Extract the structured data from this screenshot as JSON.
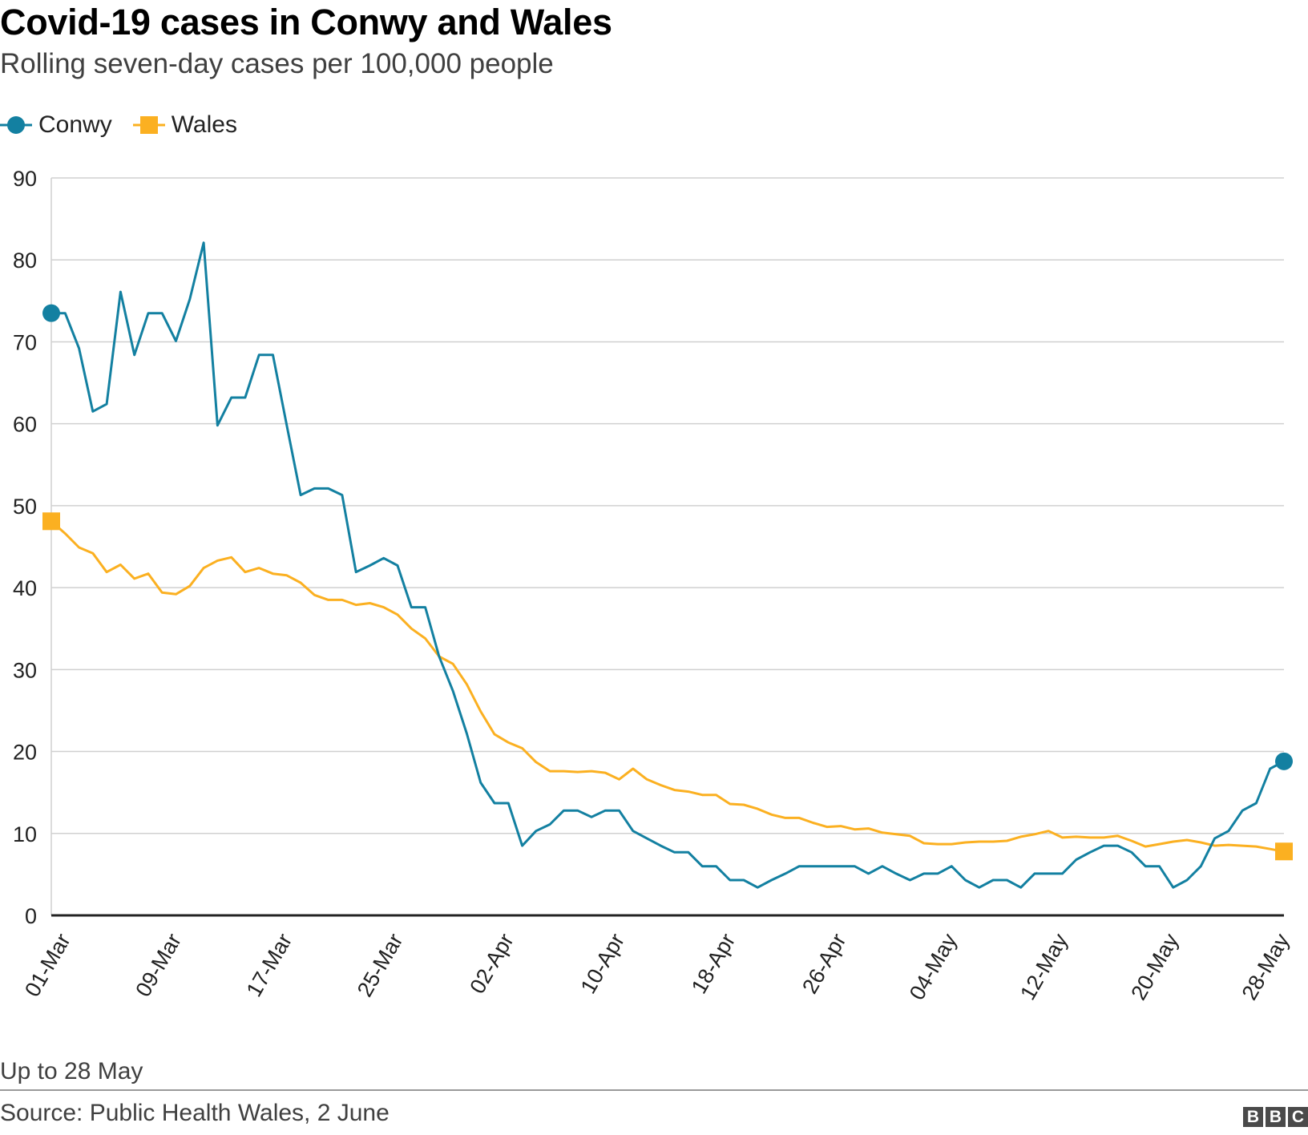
{
  "chart_data": {
    "type": "line",
    "title": "Covid-19 cases in Conwy and Wales",
    "subtitle": "Rolling seven-day cases per 100,000 people",
    "xlabel": "",
    "ylabel": "",
    "ylim": [
      0,
      90
    ],
    "yticks": [
      0,
      10,
      20,
      30,
      40,
      50,
      60,
      70,
      80,
      90
    ],
    "x_tick_labels": [
      "01-Mar",
      "09-Mar",
      "17-Mar",
      "25-Mar",
      "02-Apr",
      "10-Apr",
      "18-Apr",
      "26-Apr",
      "04-May",
      "12-May",
      "20-May",
      "28-May"
    ],
    "x_tick_interval_days": 8,
    "x_start_label": "01-Mar",
    "grid": true,
    "legend_position": "top-left",
    "series": [
      {
        "name": "Conwy",
        "color": "#1380a1",
        "marker": "circle",
        "values": [
          73.5,
          73.5,
          69.2,
          61.5,
          62.4,
          76.1,
          68.4,
          73.5,
          73.5,
          70.1,
          75.2,
          82.1,
          59.8,
          63.2,
          63.2,
          68.4,
          68.4,
          59.8,
          51.3,
          52.1,
          52.1,
          51.3,
          41.9,
          42.7,
          43.6,
          42.7,
          37.6,
          37.6,
          31.6,
          27.4,
          22.2,
          16.2,
          13.7,
          13.7,
          8.5,
          10.3,
          11.1,
          12.8,
          12.8,
          12.0,
          12.8,
          12.8,
          10.3,
          9.4,
          8.5,
          7.7,
          7.7,
          6.0,
          6.0,
          4.3,
          4.3,
          3.4,
          4.3,
          5.1,
          6.0,
          6.0,
          6.0,
          6.0,
          6.0,
          5.1,
          6.0,
          5.1,
          4.3,
          5.1,
          5.1,
          6.0,
          4.3,
          3.4,
          4.3,
          4.3,
          3.4,
          5.1,
          5.1,
          5.1,
          6.8,
          7.7,
          8.5,
          8.5,
          7.7,
          6.0,
          6.0,
          3.4,
          4.3,
          6.0,
          9.4,
          10.3,
          12.8,
          13.7,
          17.9,
          18.8
        ]
      },
      {
        "name": "Wales",
        "color": "#fbb021",
        "marker": "square",
        "values": [
          48.1,
          46.6,
          44.9,
          44.2,
          41.9,
          42.8,
          41.1,
          41.7,
          39.4,
          39.2,
          40.2,
          42.4,
          43.3,
          43.7,
          41.9,
          42.4,
          41.7,
          41.5,
          40.6,
          39.1,
          38.5,
          38.5,
          37.9,
          38.1,
          37.6,
          36.7,
          35.0,
          33.8,
          31.6,
          30.7,
          28.2,
          24.9,
          22.1,
          21.1,
          20.4,
          18.7,
          17.6,
          17.6,
          17.5,
          17.6,
          17.4,
          16.6,
          17.9,
          16.6,
          15.9,
          15.3,
          15.1,
          14.7,
          14.7,
          13.6,
          13.5,
          13.0,
          12.3,
          11.9,
          11.9,
          11.3,
          10.8,
          10.9,
          10.5,
          10.6,
          10.1,
          9.9,
          9.7,
          8.8,
          8.7,
          8.7,
          8.9,
          9.0,
          9.0,
          9.1,
          9.6,
          9.9,
          10.3,
          9.5,
          9.6,
          9.5,
          9.5,
          9.7,
          9.1,
          8.4,
          8.7,
          9.0,
          9.2,
          8.9,
          8.5,
          8.6,
          8.5,
          8.4,
          8.1,
          7.8
        ]
      }
    ]
  },
  "legend": {
    "items": [
      {
        "label": "Conwy"
      },
      {
        "label": "Wales"
      }
    ]
  },
  "footer": {
    "note": "Up to 28 May",
    "source": "Source: Public Health Wales, 2 June",
    "logo_letters": [
      "B",
      "B",
      "C"
    ]
  }
}
